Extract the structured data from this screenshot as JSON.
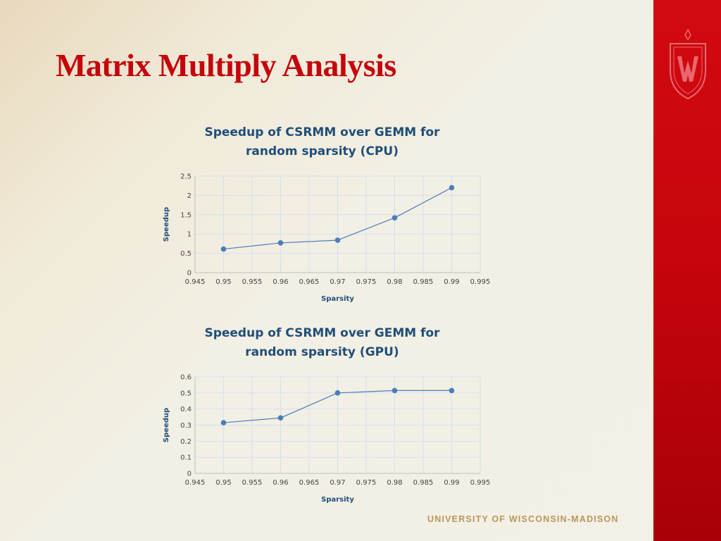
{
  "slide": {
    "title": "Matrix Multiply Analysis",
    "footer": "UNIVERSITY OF WISCONSIN-MADISON"
  },
  "colors": {
    "title": "#c5050c",
    "band": "#c5050c",
    "footer": "#b8975a",
    "series": "#4a7ebb",
    "chart_title": "#1f4e79"
  },
  "chart_data": [
    {
      "type": "line",
      "title_lines": [
        "Speedup of CSRMM over GEMM for",
        "random sparsity (CPU)"
      ],
      "xlabel": "Sparsity",
      "ylabel": "Speedup",
      "x": [
        0.95,
        0.96,
        0.97,
        0.98,
        0.99
      ],
      "series": [
        {
          "values": [
            0.61,
            0.77,
            0.84,
            1.42,
            2.2
          ]
        }
      ],
      "xlim": [
        0.945,
        0.995
      ],
      "ylim": [
        0,
        2.5
      ],
      "xticks": [
        "0.945",
        "0.95",
        "0.955",
        "0.96",
        "0.965",
        "0.97",
        "0.975",
        "0.98",
        "0.985",
        "0.99",
        "0.995"
      ],
      "yticks": [
        "0",
        "0.5",
        "1",
        "1.5",
        "2",
        "2.5"
      ],
      "grid": true,
      "legend": "none"
    },
    {
      "type": "line",
      "title_lines": [
        "Speedup of CSRMM over GEMM for",
        "random sparsity (GPU)"
      ],
      "xlabel": "Sparsity",
      "ylabel": "Speedup",
      "x": [
        0.95,
        0.96,
        0.97,
        0.98,
        0.99
      ],
      "series": [
        {
          "values": [
            0.315,
            0.345,
            0.5,
            0.515,
            0.515
          ]
        }
      ],
      "xlim": [
        0.945,
        0.995
      ],
      "ylim": [
        0,
        0.6
      ],
      "xticks": [
        "0.945",
        "0.95",
        "0.955",
        "0.96",
        "0.965",
        "0.97",
        "0.975",
        "0.98",
        "0.985",
        "0.99",
        "0.995"
      ],
      "yticks": [
        "0",
        "0.1",
        "0.2",
        "0.3",
        "0.4",
        "0.5",
        "0.6"
      ],
      "grid": true,
      "legend": "none"
    }
  ]
}
